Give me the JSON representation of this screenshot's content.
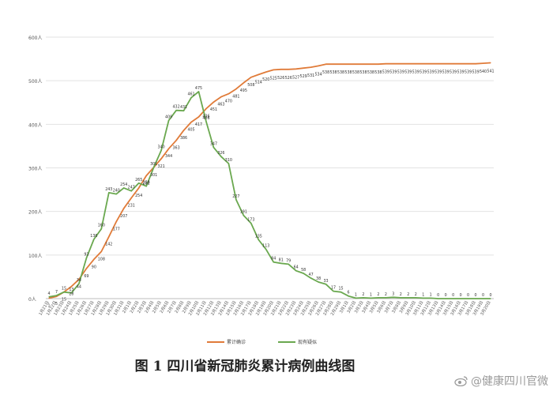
{
  "caption": "图 1   四川省新冠肺炎累计病例曲线图",
  "watermark": "@健康四川官微",
  "colors": {
    "cumulative": "#e07b39",
    "existing": "#6aa84f",
    "grid": "#e2e2e2",
    "axis": "#bdbdbd"
  },
  "chart_data": {
    "type": "line",
    "title": "",
    "xlabel": "",
    "ylabel": "",
    "ylim": [
      0,
      600
    ],
    "grid": true,
    "legend_position": "bottom",
    "y_ticks": [
      "0人",
      "100人",
      "200人",
      "300人",
      "400人",
      "500人",
      "600人"
    ],
    "x": [
      "1月21日",
      "1月22日",
      "1月23日",
      "1月24日",
      "1月25日",
      "1月26日",
      "1月27日",
      "1月28日",
      "1月29日",
      "1月30日",
      "1月31日",
      "2月1日",
      "2月2日",
      "2月3日",
      "2月4日",
      "2月5日",
      "2月6日",
      "2月7日",
      "2月8日",
      "2月9日",
      "2月10日",
      "2月11日",
      "2月12日",
      "2月13日",
      "2月14日",
      "2月15日",
      "2月16日",
      "2月17日",
      "2月18日",
      "2月19日",
      "2月20日",
      "2月21日",
      "2月22日",
      "2月23日",
      "2月24日",
      "2月25日",
      "2月26日",
      "2月27日",
      "2月28日",
      "2月29日",
      "3月1日",
      "3月2日",
      "3月3日",
      "3月4日",
      "3月5日",
      "3月6日",
      "3月7日",
      "3月8日",
      "3月9日",
      "3月10日",
      "3月11日",
      "3月12日",
      "3月13日",
      "3月14日",
      "3月15日",
      "3月16日",
      "3月17日",
      "3月18日",
      "3月19日",
      "3月20日"
    ],
    "series": [
      {
        "name": "累计确诊",
        "values": [
          1,
          5,
          15,
          28,
          44,
          69,
          90,
          108,
          142,
          177,
          207,
          231,
          254,
          282,
          301,
          321,
          344,
          363,
          386,
          405,
          417,
          436,
          451,
          463,
          470,
          481,
          495,
          508,
          514,
          520,
          525,
          526,
          526,
          527,
          529,
          531,
          534,
          538,
          538,
          538,
          538,
          538,
          538,
          538,
          538,
          539,
          539,
          539,
          539,
          539,
          539,
          539,
          539,
          539,
          539,
          539,
          539,
          539,
          540,
          541
        ],
        "labels": [
          "1",
          "5",
          "15",
          "28",
          "44",
          "69",
          "90",
          "108",
          "142",
          "177",
          "207",
          "231",
          "254",
          "282",
          "301",
          "321",
          "344",
          "363",
          "386",
          "405",
          "417",
          "436",
          "451",
          "463",
          "470",
          "481",
          "495",
          "508",
          "514",
          "520",
          "525",
          "526",
          "526",
          "527",
          "529",
          "531",
          "534",
          "538",
          "538",
          "538",
          "538",
          "538",
          "538",
          "538",
          "538",
          "539",
          "539",
          "539",
          "539",
          "539",
          "539",
          "539",
          "539",
          "539",
          "539",
          "539",
          "539",
          "539",
          "540",
          "541"
        ]
      },
      {
        "name": "现有疑似",
        "values": [
          4,
          7,
          15,
          13,
          34,
          93,
          136,
          160,
          243,
          240,
          254,
          247,
          265,
          258,
          301,
          340,
          409,
          432,
          431,
          461,
          475,
          406,
          347,
          326,
          310,
          227,
          191,
          173,
          135,
          113,
          84,
          81,
          79,
          64,
          58,
          47,
          38,
          33,
          17,
          15,
          6,
          1,
          2,
          1,
          2,
          2,
          3,
          2,
          2,
          2,
          1,
          1,
          0,
          0,
          0,
          0,
          0,
          0,
          0,
          0
        ],
        "labels": [
          "4",
          "7",
          "15",
          "13",
          "34",
          "93",
          "136",
          "160",
          "243",
          "240",
          "254",
          "247",
          "265",
          "258",
          "301",
          "340",
          "409",
          "432",
          "431",
          "461",
          "475",
          "406",
          "347",
          "326",
          "310",
          "227",
          "191",
          "173",
          "135",
          "113",
          "84",
          "81",
          "79",
          "64",
          "58",
          "47",
          "38",
          "33",
          "17",
          "15",
          "6",
          "1",
          "2",
          "1",
          "2",
          "2",
          "3",
          "2",
          "2",
          "2",
          "1",
          "1",
          "0",
          "0",
          "0",
          "0",
          "0",
          "0",
          "0",
          "0"
        ]
      }
    ]
  }
}
